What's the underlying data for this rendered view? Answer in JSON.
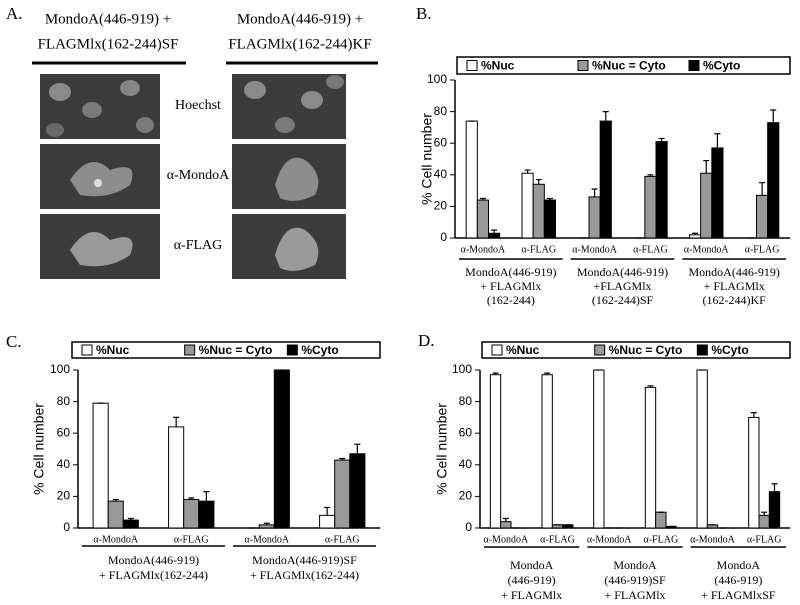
{
  "panel_a": {
    "label": "A.",
    "columns": [
      [
        "MondoA(446-919) +",
        "FLAGMlx(162-244)SF"
      ],
      [
        "MondoA(446-919) +",
        "FLAGMlx(162-244)KF"
      ]
    ],
    "rows": [
      "Hoechst",
      "α-MondoA",
      "α-FLAG"
    ]
  },
  "chart_data": [
    {
      "type": "bar",
      "panel": "B.",
      "ylabel": "% Cell number",
      "ylim": [
        0,
        100
      ],
      "yticks": [
        0,
        20,
        40,
        60,
        80,
        100
      ],
      "categories": [
        "α-MondoA",
        "α-FLAG",
        "α-MondoA",
        "α-FLAG",
        "α-MondoA",
        "α-FLAG"
      ],
      "groups": [
        [
          "MondoA(446-919)",
          "+ FLAGMlx",
          "(162-244)"
        ],
        [
          "MondoA(446-919)",
          "+FLAGMlx",
          "(162-244)SF"
        ],
        [
          "MondoA(446-919)",
          "+ FLAGMlx",
          "(162-244)KF"
        ]
      ],
      "series": [
        {
          "name": "%Nuc",
          "color": "#ffffff",
          "values": [
            74,
            41,
            0,
            0,
            2,
            0
          ],
          "errors": [
            0,
            2,
            0,
            0,
            1,
            0
          ]
        },
        {
          "name": "%Nuc = Cyto",
          "color": "#999999",
          "values": [
            24,
            34,
            26,
            39,
            41,
            27
          ],
          "errors": [
            1,
            3,
            5,
            1,
            8,
            8
          ]
        },
        {
          "name": "%Cyto",
          "color": "#000000",
          "values": [
            3,
            24,
            74,
            61,
            57,
            73
          ],
          "errors": [
            2,
            1,
            6,
            2,
            9,
            8
          ]
        }
      ]
    },
    {
      "type": "bar",
      "panel": "C.",
      "ylabel": "% Cell number",
      "ylim": [
        0,
        100
      ],
      "yticks": [
        0,
        20,
        40,
        60,
        80,
        100
      ],
      "categories": [
        "α-MondoA",
        "α-FLAG",
        "α-MondoA",
        "α-FLAG"
      ],
      "groups": [
        [
          "MondoA(446-919)",
          "+ FLAGMlx(162-244)"
        ],
        [
          "MondoA(446-919)SF",
          "+ FLAGMlx(162-244)"
        ]
      ],
      "series": [
        {
          "name": "%Nuc",
          "color": "#ffffff",
          "values": [
            79,
            64,
            0,
            8
          ],
          "errors": [
            0,
            6,
            0,
            5
          ]
        },
        {
          "name": "%Nuc = Cyto",
          "color": "#999999",
          "values": [
            17,
            18,
            2,
            43
          ],
          "errors": [
            1,
            1,
            1,
            1
          ]
        },
        {
          "name": "%Cyto",
          "color": "#000000",
          "values": [
            5,
            17,
            100,
            47
          ],
          "errors": [
            1,
            6,
            0,
            6
          ]
        }
      ]
    },
    {
      "type": "bar",
      "panel": "D.",
      "ylabel": "% Cell number",
      "ylim": [
        0,
        100
      ],
      "yticks": [
        0,
        20,
        40,
        60,
        80,
        100
      ],
      "categories": [
        "α-MondoA",
        "α-FLAG",
        "α-MondoA",
        "α-FLAG",
        "α-MondoA",
        "α-FLAG"
      ],
      "groups": [
        [
          "MondoA",
          "(446-919)",
          "+ FLAGMlx"
        ],
        [
          "MondoA",
          "(446-919)SF",
          "+ FLAGMlx"
        ],
        [
          "MondoA",
          "(446-919)",
          "+ FLAGMlxSF"
        ]
      ],
      "series": [
        {
          "name": "%Nuc",
          "color": "#ffffff",
          "values": [
            97,
            97,
            100,
            89,
            100,
            70
          ],
          "errors": [
            1,
            1,
            0,
            1,
            0,
            3
          ]
        },
        {
          "name": "%Nuc = Cyto",
          "color": "#999999",
          "values": [
            4,
            2,
            0,
            10,
            2,
            8
          ],
          "errors": [
            2,
            0,
            0,
            0,
            0,
            2
          ]
        },
        {
          "name": "%Cyto",
          "color": "#000000",
          "values": [
            0,
            2,
            0,
            1,
            0,
            23
          ],
          "errors": [
            0,
            0,
            0,
            0,
            0,
            5
          ]
        }
      ]
    }
  ]
}
